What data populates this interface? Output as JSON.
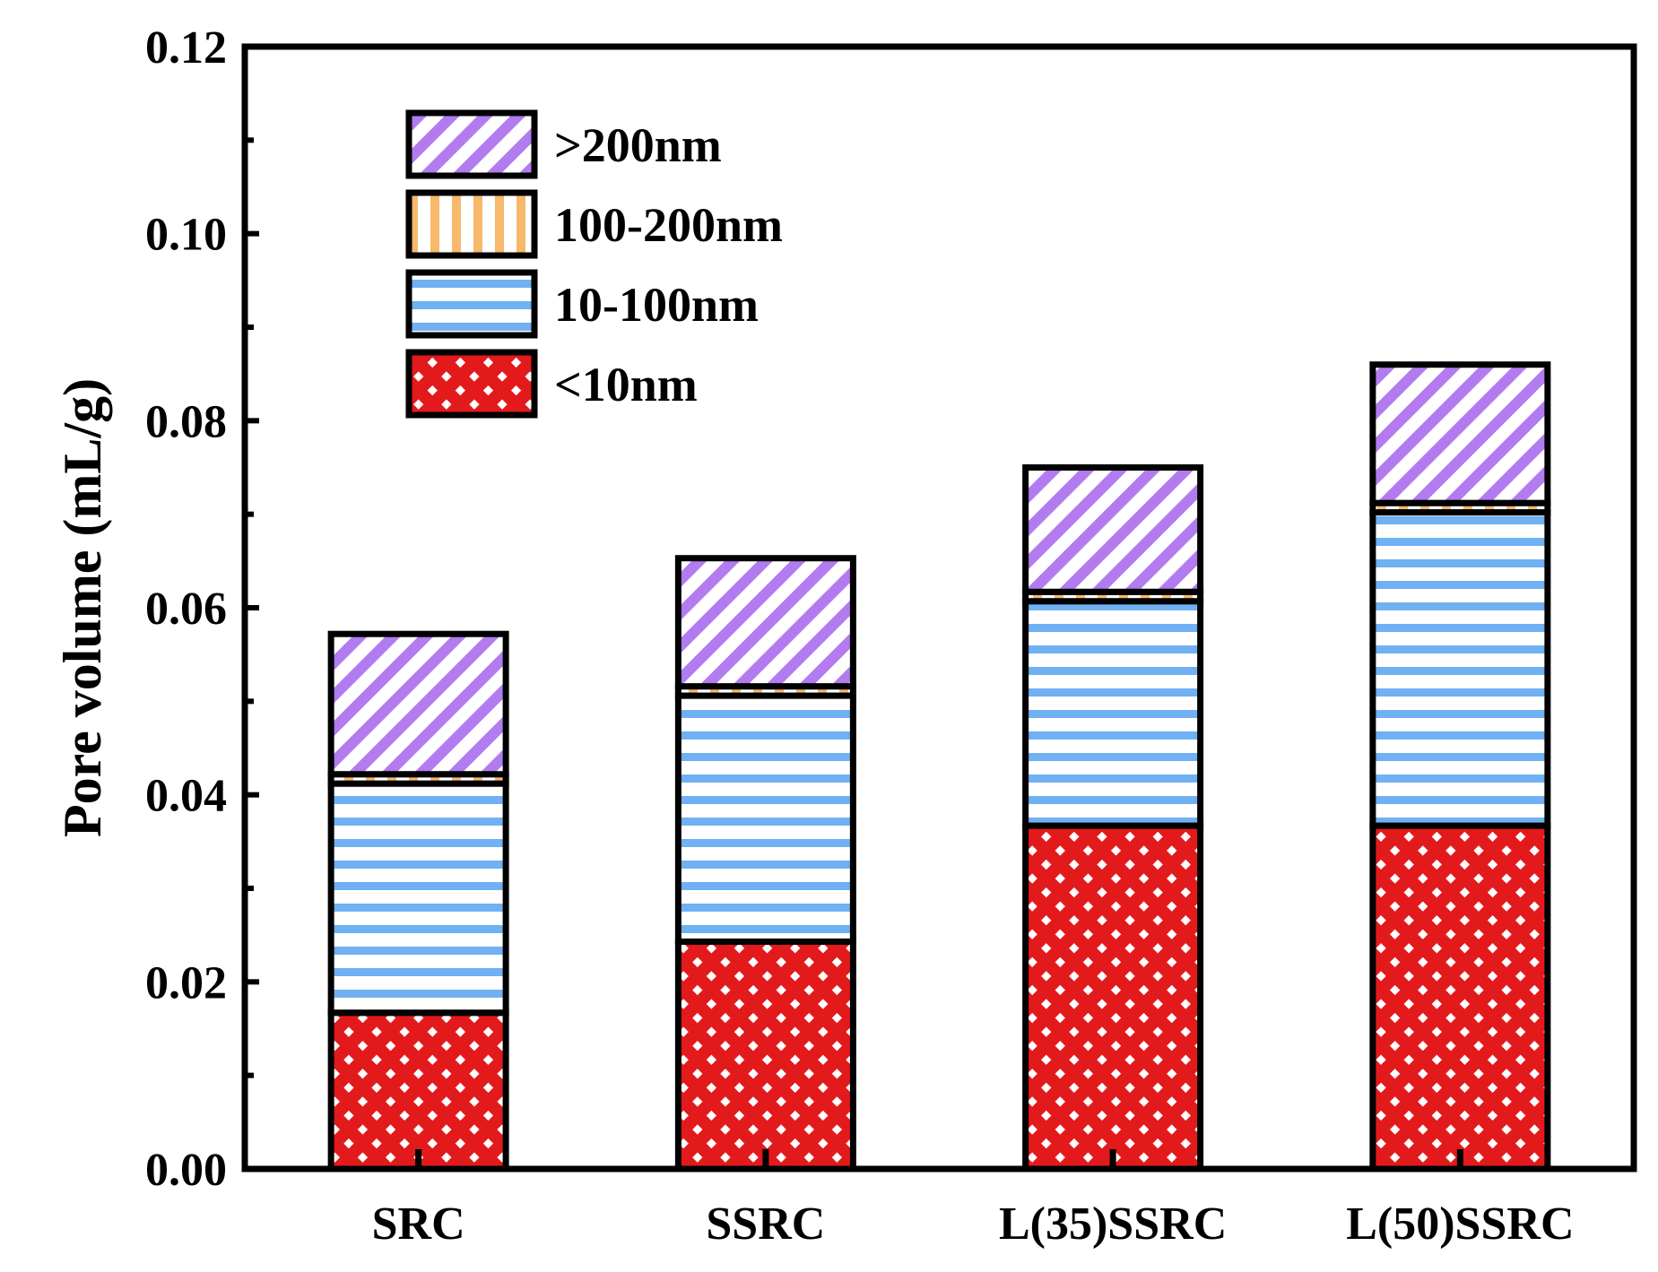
{
  "chart_data": {
    "type": "bar",
    "stacked": true,
    "title": "",
    "xlabel": "",
    "ylabel": "Pore volume (mL/g)",
    "ylim": [
      0,
      0.12
    ],
    "y_ticks": [
      "0.00",
      "0.02",
      "0.04",
      "0.06",
      "0.08",
      "0.10",
      "0.12"
    ],
    "categories": [
      "SRC",
      "SSRC",
      "L(35)SSRC",
      "L(50)SSRC"
    ],
    "series": [
      {
        "name": "<10nm",
        "legend_label": "<10nm",
        "color": "#e31a1c",
        "pattern": "checker",
        "values": [
          0.0167,
          0.0243,
          0.0367,
          0.0367
        ]
      },
      {
        "name": "10-100nm",
        "legend_label": "10-100nm",
        "color": "#6fb1f2",
        "pattern": "horizontal",
        "values": [
          0.0245,
          0.0263,
          0.024,
          0.0335
        ]
      },
      {
        "name": "100-200nm",
        "legend_label": "100-200nm",
        "color": "#f7b96b",
        "pattern": "vertical",
        "values": [
          0.001,
          0.001,
          0.001,
          0.001
        ]
      },
      {
        "name": ">200nm",
        "legend_label": ">200nm",
        "color": "#b27cf0",
        "pattern": "diagonal",
        "values": [
          0.015,
          0.0137,
          0.0133,
          0.0148
        ]
      }
    ],
    "totals": [
      0.0572,
      0.0653,
      0.075,
      0.086
    ],
    "legend_position": "top-left",
    "grid": false
  }
}
